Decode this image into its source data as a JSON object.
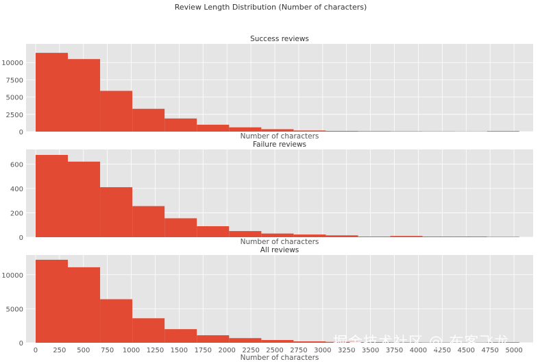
{
  "figure_title": "Review Length Distribution (Number of characters)",
  "watermark": "掘金技术社区 @ 布客飞龙",
  "colors": {
    "bar": "#E24A33",
    "panel_bg": "#E5E5E5",
    "grid": "#FFFFFF",
    "text": "#555555",
    "title": "#333333"
  },
  "chart_data": [
    {
      "type": "bar",
      "title": "Success reviews",
      "xlabel": "Number of characters",
      "ylabel": "",
      "bin_edges": [
        0,
        337,
        674,
        1011,
        1348,
        1685,
        2022,
        2359,
        2696,
        3033,
        3370,
        3707,
        4044,
        4381,
        4718,
        5055
      ],
      "values": [
        11400,
        10500,
        5900,
        3300,
        1900,
        1000,
        620,
        350,
        160,
        100,
        70,
        50,
        40,
        30,
        80
      ],
      "ylim": [
        0,
        12700
      ],
      "yticks": [
        0,
        2500,
        5000,
        7500,
        10000
      ],
      "xlim": [
        -100,
        5200
      ],
      "show_xticks": false,
      "grid": true
    },
    {
      "type": "bar",
      "title": "Failure reviews",
      "xlabel": "Number of characters",
      "ylabel": "",
      "bin_edges": [
        0,
        337,
        674,
        1011,
        1348,
        1685,
        2022,
        2359,
        2696,
        3033,
        3370,
        3707,
        4044,
        4381,
        4718,
        5055
      ],
      "values": [
        675,
        620,
        410,
        255,
        155,
        90,
        50,
        30,
        22,
        15,
        5,
        10,
        5,
        5,
        3
      ],
      "ylim": [
        0,
        720
      ],
      "yticks": [
        0,
        200,
        400,
        600
      ],
      "xlim": [
        -100,
        5200
      ],
      "show_xticks": false,
      "grid": true
    },
    {
      "type": "bar",
      "title": "All reviews",
      "xlabel": "Number of characters",
      "ylabel": "",
      "bin_edges": [
        0,
        337,
        674,
        1011,
        1348,
        1685,
        2022,
        2359,
        2696,
        3033,
        3370,
        3707,
        4044,
        4381,
        4718,
        5055
      ],
      "values": [
        12200,
        11100,
        6400,
        3600,
        2000,
        1100,
        680,
        400,
        200,
        130,
        90,
        60,
        45,
        35,
        80
      ],
      "ylim": [
        0,
        12900
      ],
      "yticks": [
        0,
        5000,
        10000
      ],
      "xlim": [
        -100,
        5200
      ],
      "xticks": [
        0,
        250,
        500,
        750,
        1000,
        1250,
        1500,
        1750,
        2000,
        2250,
        2500,
        2750,
        3000,
        3250,
        3500,
        3750,
        4000,
        4250,
        4500,
        4750,
        5000
      ],
      "show_xticks": true,
      "grid": true
    }
  ]
}
